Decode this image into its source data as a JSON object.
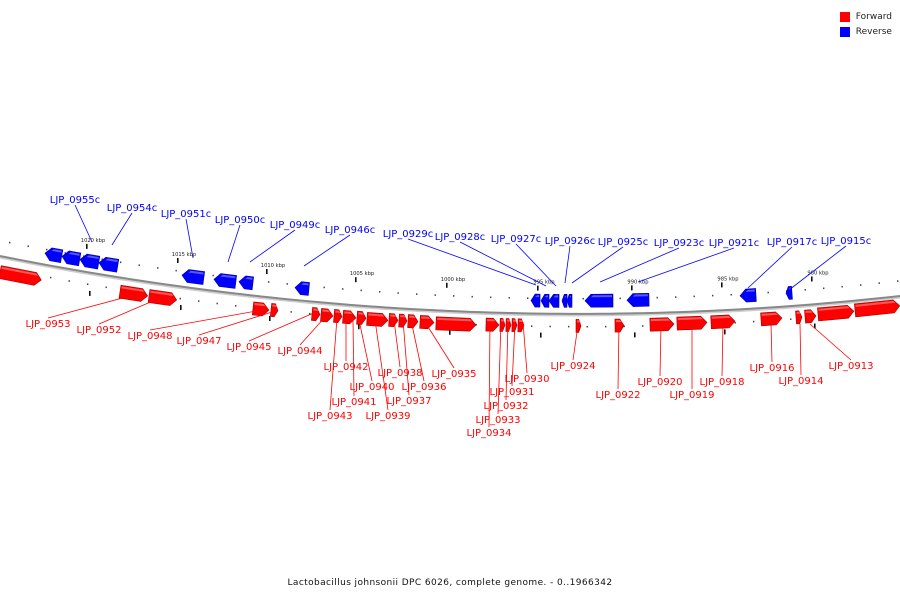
{
  "colors": {
    "forward": "#ff0000",
    "reverse": "#0000ff",
    "backbone": "#888888"
  },
  "legend": [
    {
      "label": "Forward",
      "strand": "forward"
    },
    {
      "label": "Reverse",
      "strand": "reverse"
    }
  ],
  "caption": "Lactobacillus johnsonii DPC 6026, complete genome. - 0..1966342",
  "scale_labels": [
    "1020 kbp",
    "1015 kbp",
    "1010 kbp",
    "1005 kbp",
    "1000 kbp",
    "995 kbp",
    "990 kbp",
    "985 kbp",
    "980 kbp"
  ],
  "reverse_genes": [
    "LJP_0955c",
    "LJP_0954c",
    "LJP_0951c",
    "LJP_0950c",
    "LJP_0949c",
    "LJP_0946c",
    "LJP_0929c",
    "LJP_0928c",
    "LJP_0927c",
    "LJP_0926c",
    "LJP_0925c",
    "LJP_0923c",
    "LJP_0921c",
    "LJP_0917c",
    "LJP_0915c"
  ],
  "forward_genes": [
    "LJP_0953",
    "LJP_0952",
    "LJP_0948",
    "LJP_0947",
    "LJP_0945",
    "LJP_0944",
    "LJP_0942",
    "LJP_0943",
    "LJP_0941",
    "LJP_0940",
    "LJP_0939",
    "LJP_0938",
    "LJP_0937",
    "LJP_0936",
    "LJP_0935",
    "LJP_0934",
    "LJP_0933",
    "LJP_0932",
    "LJP_0931",
    "LJP_0930",
    "LJP_0924",
    "LJP_0922",
    "LJP_0920",
    "LJP_0919",
    "LJP_0918",
    "LJP_0916",
    "LJP_0914",
    "LJP_0913"
  ]
}
